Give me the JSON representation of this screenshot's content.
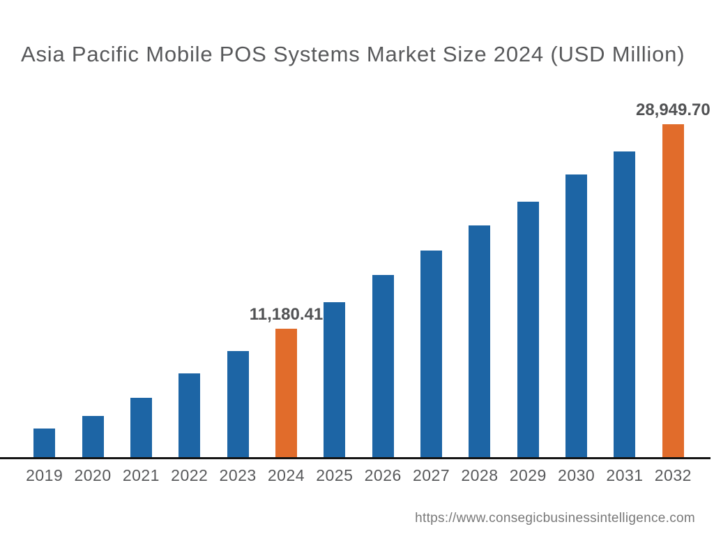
{
  "header": {
    "title": "Asia Pacific Mobile POS Systems Market Size 2024 (USD Million)"
  },
  "footer": {
    "source_url": "https://www.consegicbusinessintelligence.com"
  },
  "chart_data": {
    "type": "bar",
    "title": "Asia Pacific Mobile POS Systems Market Size 2024 (USD Million)",
    "categories": [
      "2019",
      "2020",
      "2021",
      "2022",
      "2023",
      "2024",
      "2025",
      "2026",
      "2027",
      "2028",
      "2029",
      "2030",
      "2031",
      "2032"
    ],
    "values": [
      2465,
      3610,
      5160,
      7280,
      9230,
      11180.41,
      13450,
      15845,
      17985,
      20130,
      22205,
      24600,
      26555,
      28949.7
    ],
    "bar_labels": [
      "",
      "",
      "",
      "",
      "",
      "11,180.41",
      "",
      "",
      "",
      "",
      "",
      "",
      "",
      "28,949.70"
    ],
    "highlighted_categories": [
      "2024",
      "2032"
    ],
    "colors": {
      "bar": "#1d65a5",
      "highlight": "#e16c2b",
      "value_label": "#515254",
      "axis_label": "#58595b",
      "axis_line": "#141414",
      "title": "#58595b",
      "source_url": "#787878"
    },
    "xlabel": "",
    "ylabel": "",
    "ylim": [
      0,
      28949.7
    ],
    "grid": false,
    "legend": false
  }
}
